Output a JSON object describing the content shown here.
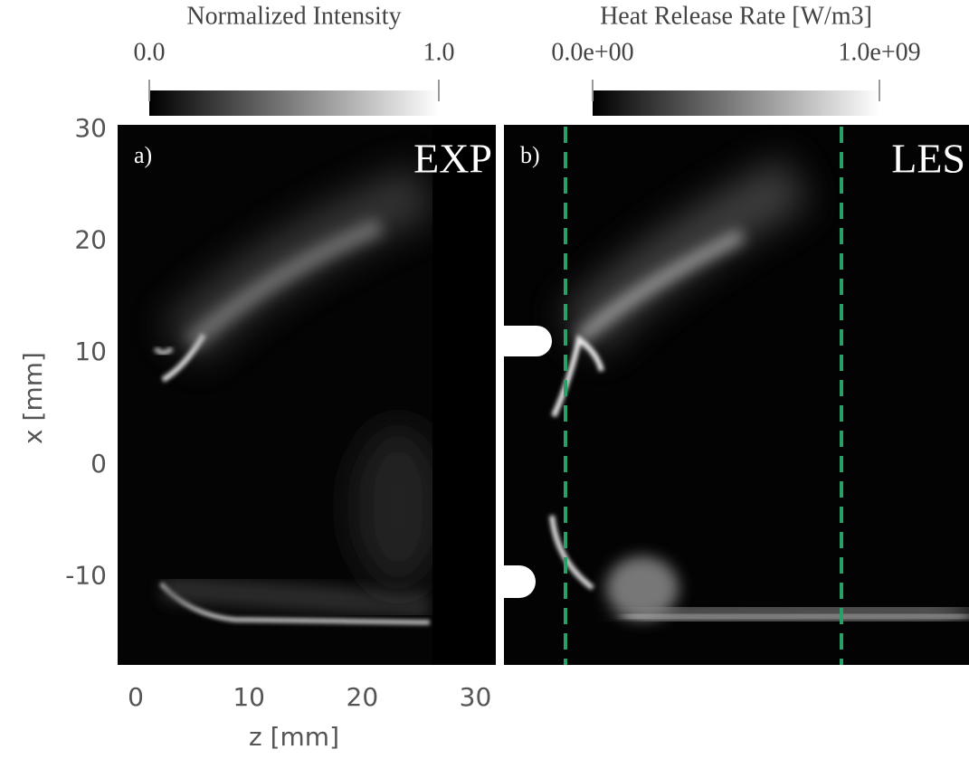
{
  "chart_data": [
    {
      "type": "image",
      "panel_label": "a)",
      "annotation": "EXP",
      "xlabel": "z [mm]",
      "ylabel": "x [mm]",
      "xlim": [
        -1.6,
        31.8
      ],
      "ylim": [
        -17.9,
        30.4
      ],
      "xticks": [
        0,
        10,
        20,
        30
      ],
      "yticks": [
        -10,
        0,
        10,
        20,
        30
      ],
      "colorbar": {
        "label": "Normalized Intensity",
        "lim": [
          0,
          1
        ],
        "ticks": [
          {
            "value": 0,
            "label": "0.0"
          },
          {
            "value": 1,
            "label": "1.0"
          }
        ]
      }
    },
    {
      "type": "image",
      "panel_label": "b)",
      "annotation": "LES",
      "colorbar": {
        "label": "Heat Release Rate [W/m3]",
        "lim": [
          0,
          1000000000
        ],
        "ticks": [
          {
            "value": 0,
            "label": "0.0e+00"
          },
          {
            "value": 1000000000,
            "label": "1.0e+09"
          }
        ]
      }
    }
  ]
}
